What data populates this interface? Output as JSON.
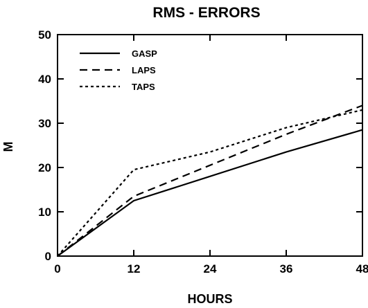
{
  "chart_data": {
    "type": "line",
    "title": "RMS - ERRORS",
    "xlabel": "HOURS",
    "ylabel": "M",
    "x": [
      0,
      12,
      24,
      36,
      48
    ],
    "xlim": [
      0,
      48
    ],
    "ylim": [
      0,
      50
    ],
    "x_ticks": [
      "0",
      "12",
      "24",
      "36",
      "48"
    ],
    "y_ticks": [
      "0",
      "10",
      "20",
      "30",
      "40",
      "50"
    ],
    "grid": false,
    "legend_position": "top-left",
    "series": [
      {
        "name": "GASP",
        "style": "solid",
        "values": [
          0,
          12.5,
          18,
          23.5,
          28.5
        ]
      },
      {
        "name": "LAPS",
        "style": "dashed",
        "values": [
          0,
          13.5,
          20.5,
          27.5,
          34
        ]
      },
      {
        "name": "TAPS",
        "style": "dotted",
        "values": [
          0,
          19.5,
          23.5,
          29,
          33
        ]
      }
    ]
  }
}
